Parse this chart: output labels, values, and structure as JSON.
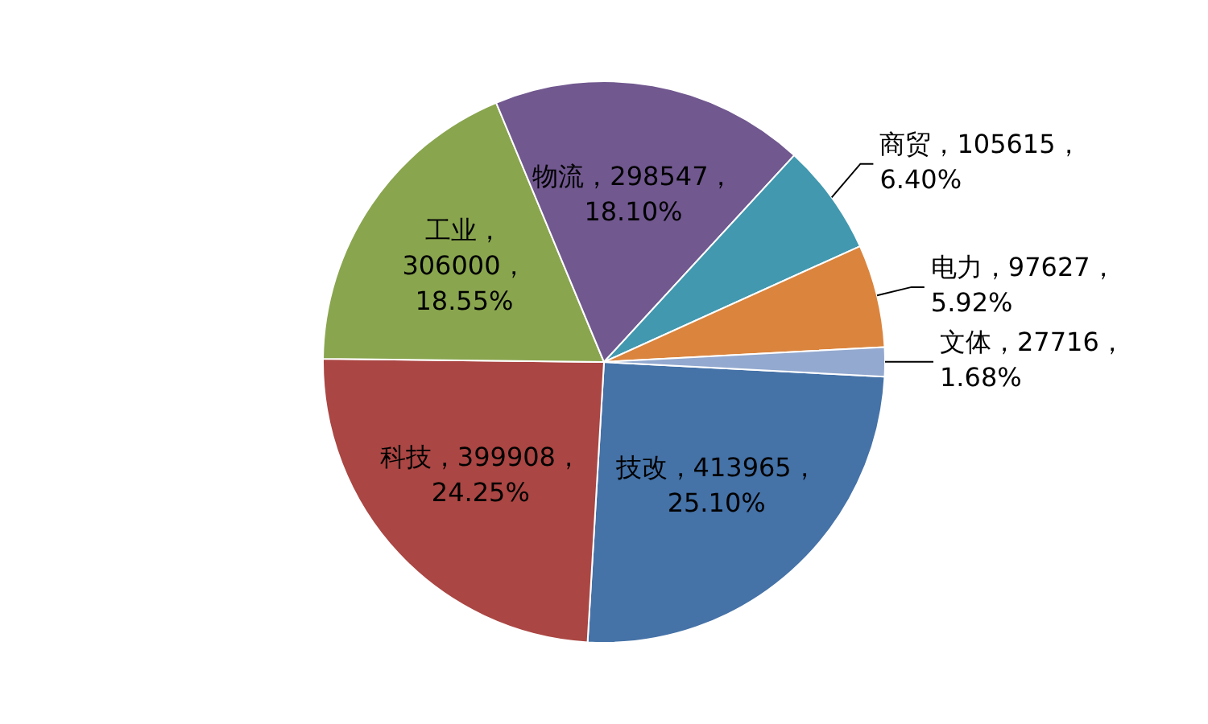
{
  "chart_data": {
    "type": "pie",
    "categories": [
      "技改",
      "科技",
      "工业",
      "物流",
      "商贸",
      "电力",
      "文体"
    ],
    "values": [
      413965,
      399908,
      306000,
      298547,
      105615,
      97627,
      27716
    ],
    "colors": [
      "#4572a7",
      "#aa4643",
      "#89a54e",
      "#71588f",
      "#4198af",
      "#db843d",
      "#93a9cf"
    ],
    "value_labels": [
      "，413965，\n25.10%",
      "，399908，\n24.25%",
      "，\n306000，\n18.55%",
      "，298547，\n18.10%",
      "，105615，\n6.40%",
      "，97627，\n5.92%",
      "，27716，\n1.68%"
    ]
  }
}
